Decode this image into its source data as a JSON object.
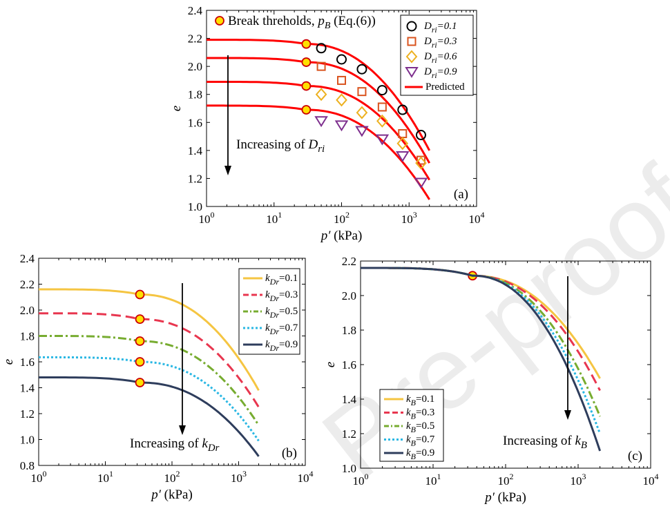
{
  "watermark": "Pre-proof",
  "chart_data": [
    {
      "id": "a",
      "type": "scatter+line",
      "panel_label": "(a)",
      "xlabel": "p′ (kPa)",
      "ylabel": "e",
      "xscale": "log",
      "xlim": [
        1,
        10000
      ],
      "ylim": [
        1.0,
        2.4
      ],
      "xticks": [
        1,
        10,
        100,
        1000,
        10000
      ],
      "xtick_labels": [
        [
          "10",
          "0"
        ],
        [
          "10",
          "1"
        ],
        [
          "10",
          "2"
        ],
        [
          "10",
          "3"
        ],
        [
          "10",
          "4"
        ]
      ],
      "yticks": [
        1.0,
        1.2,
        1.4,
        1.6,
        1.8,
        2.0,
        2.2,
        2.4
      ],
      "ytick_labels": [
        "1.0",
        "1.2",
        "1.4",
        "1.6",
        "1.8",
        "2.0",
        "2.2",
        "2.4"
      ],
      "legend_position": "top-right",
      "break_note": "Break threholds, p_B (Eq.(6))",
      "arrow_label": "Increasing of D_ri",
      "series": [
        {
          "name": "D_ri=0.1",
          "marker": "circle",
          "color": "#000000",
          "x": [
            50,
            100,
            200,
            400,
            800,
            1500
          ],
          "y": [
            2.13,
            2.05,
            1.98,
            1.83,
            1.69,
            1.51
          ]
        },
        {
          "name": "D_ri=0.3",
          "marker": "square",
          "color": "#d9531e",
          "x": [
            50,
            100,
            200,
            400,
            800,
            1500
          ],
          "y": [
            2.0,
            1.9,
            1.82,
            1.71,
            1.52,
            1.33
          ]
        },
        {
          "name": "D_ri=0.6",
          "marker": "diamond",
          "color": "#edb120",
          "x": [
            50,
            100,
            200,
            400,
            800,
            1500
          ],
          "y": [
            1.8,
            1.76,
            1.67,
            1.61,
            1.45,
            1.31
          ]
        },
        {
          "name": "D_ri=0.9",
          "marker": "triangle-down",
          "color": "#7e2f8e",
          "x": [
            50,
            100,
            200,
            400,
            800,
            1500
          ],
          "y": [
            1.61,
            1.58,
            1.54,
            1.48,
            1.36,
            1.17
          ]
        }
      ],
      "predicted": {
        "name": "Predicted",
        "color": "#ff0000",
        "curves": [
          {
            "e0": 2.19,
            "pB": 30,
            "eB": 2.16,
            "pEnd": 2000,
            "eEnd": 1.4
          },
          {
            "e0": 2.06,
            "pB": 30,
            "eB": 2.03,
            "pEnd": 2000,
            "eEnd": 1.31
          },
          {
            "e0": 1.89,
            "pB": 30,
            "eB": 1.86,
            "pEnd": 2000,
            "eEnd": 1.19
          },
          {
            "e0": 1.72,
            "pB": 30,
            "eB": 1.69,
            "pEnd": 2000,
            "eEnd": 1.05
          }
        ]
      }
    },
    {
      "id": "b",
      "type": "line",
      "panel_label": "(b)",
      "xlabel": "p′ (kPa)",
      "ylabel": "e",
      "xscale": "log",
      "xlim": [
        1,
        10000
      ],
      "ylim": [
        0.8,
        2.4
      ],
      "xticks": [
        1,
        10,
        100,
        1000,
        10000
      ],
      "xtick_labels": [
        [
          "10",
          "0"
        ],
        [
          "10",
          "1"
        ],
        [
          "10",
          "2"
        ],
        [
          "10",
          "3"
        ],
        [
          "10",
          "4"
        ]
      ],
      "yticks": [
        0.8,
        1.0,
        1.2,
        1.4,
        1.6,
        1.8,
        2.0,
        2.2,
        2.4
      ],
      "ytick_labels": [
        "0.8",
        "1.0",
        "1.2",
        "1.4",
        "1.6",
        "1.8",
        "2.0",
        "2.2",
        "2.4"
      ],
      "legend_position": "top-right",
      "arrow_label": "Increasing of k_Dr",
      "series": [
        {
          "name": "k_Dr=0.1",
          "color": "#f5c542",
          "dash": "",
          "e0": 2.16,
          "pB": 33,
          "eB": 2.12,
          "pEnd": 2000,
          "eEnd": 1.38
        },
        {
          "name": "k_Dr=0.3",
          "color": "#e8364f",
          "dash": "14 7",
          "e0": 1.975,
          "pB": 33,
          "eB": 1.93,
          "pEnd": 2000,
          "eEnd": 1.25
        },
        {
          "name": "k_Dr=0.5",
          "color": "#77ac30",
          "dash": "12 4 3 4",
          "e0": 1.8,
          "pB": 33,
          "eB": 1.76,
          "pEnd": 2000,
          "eEnd": 1.11
        },
        {
          "name": "k_Dr=0.7",
          "color": "#2ab7e3",
          "dash": "3 3",
          "e0": 1.635,
          "pB": 33,
          "eB": 1.6,
          "pEnd": 2000,
          "eEnd": 0.99
        },
        {
          "name": "k_Dr=0.9",
          "color": "#2e3d5c",
          "dash": "",
          "e0": 1.48,
          "pB": 33,
          "eB": 1.44,
          "pEnd": 2000,
          "eEnd": 0.87
        }
      ]
    },
    {
      "id": "c",
      "type": "line",
      "panel_label": "(c)",
      "xlabel": "p′ (kPa)",
      "ylabel": "e",
      "xscale": "log",
      "xlim": [
        1,
        10000
      ],
      "ylim": [
        1.0,
        2.2
      ],
      "xticks": [
        1,
        10,
        100,
        1000,
        10000
      ],
      "xtick_labels": [
        [
          "10",
          "0"
        ],
        [
          "10",
          "1"
        ],
        [
          "10",
          "2"
        ],
        [
          "10",
          "3"
        ],
        [
          "10",
          "4"
        ]
      ],
      "yticks": [
        1.0,
        1.2,
        1.4,
        1.6,
        1.8,
        2.0,
        2.2
      ],
      "ytick_labels": [
        "1.0",
        "1.2",
        "1.4",
        "1.6",
        "1.8",
        "2.0",
        "2.2"
      ],
      "legend_position": "bottom-left",
      "arrow_label": "Increasing of k_B",
      "series": [
        {
          "name": "k_B=0.1",
          "color": "#f5c542",
          "dash": "",
          "e0": 2.16,
          "pB": 35,
          "eB": 2.115,
          "pEnd": 2000,
          "eEnd": 1.52
        },
        {
          "name": "k_B=0.3",
          "color": "#e8364f",
          "dash": "14 7",
          "e0": 2.16,
          "pB": 35,
          "eB": 2.115,
          "pEnd": 2000,
          "eEnd": 1.45
        },
        {
          "name": "k_B=0.5",
          "color": "#77ac30",
          "dash": "12 4 3 4",
          "e0": 2.16,
          "pB": 35,
          "eB": 2.115,
          "pEnd": 2000,
          "eEnd": 1.3
        },
        {
          "name": "k_B=0.7",
          "color": "#2ab7e3",
          "dash": "3 3",
          "e0": 2.16,
          "pB": 35,
          "eB": 2.115,
          "pEnd": 2000,
          "eEnd": 1.2
        },
        {
          "name": "k_B=0.9",
          "color": "#2e3d5c",
          "dash": "",
          "e0": 2.16,
          "pB": 35,
          "eB": 2.115,
          "pEnd": 2000,
          "eEnd": 1.1
        }
      ]
    }
  ]
}
